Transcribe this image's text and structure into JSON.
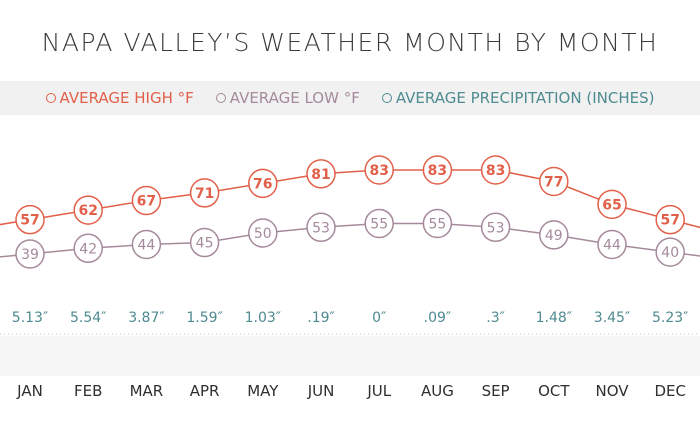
{
  "chart_data": {
    "type": "line",
    "title": "NAPA VALLEY’S WEATHER MONTH BY MONTH",
    "categories": [
      "JAN",
      "FEB",
      "MAR",
      "APR",
      "MAY",
      "JUN",
      "JUL",
      "AUG",
      "SEP",
      "OCT",
      "NOV",
      "DEC"
    ],
    "series": [
      {
        "name": "AVERAGE HIGH °F",
        "color": "#e2604a",
        "values": [
          57,
          62,
          67,
          71,
          76,
          81,
          83,
          83,
          83,
          77,
          65,
          57
        ]
      },
      {
        "name": "AVERAGE LOW °F",
        "color": "#a58a9b",
        "values": [
          39,
          42,
          44,
          45,
          50,
          53,
          55,
          55,
          53,
          49,
          44,
          40
        ]
      },
      {
        "name": "AVERAGE PRECIPITATION (INCHES)",
        "color": "#4e8b91",
        "values": [
          5.13,
          5.54,
          3.87,
          1.59,
          1.03,
          0.19,
          0,
          0.09,
          0.3,
          1.48,
          3.45,
          5.23
        ],
        "labels": [
          "5.13″",
          "5.54″",
          "3.87″",
          "1.59″",
          "1.03″",
          ".19″",
          "0″",
          ".09″",
          ".3″",
          "1.48″",
          "3.45″",
          "5.23″"
        ]
      }
    ],
    "legend_position": "top",
    "grid": false
  }
}
